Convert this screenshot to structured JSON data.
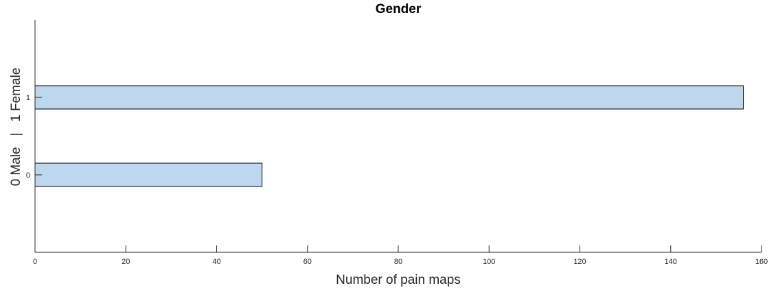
{
  "chart_data": {
    "type": "bar",
    "orientation": "horizontal",
    "title": "Gender",
    "xlabel": "Number of pain maps",
    "ylabel": "0 Male   |   1 Female",
    "categories": [
      "0",
      "1"
    ],
    "values": [
      50,
      156
    ],
    "xlim": [
      0,
      160
    ],
    "xticks": [
      0,
      20,
      40,
      60,
      80,
      100,
      120,
      140,
      160
    ],
    "ylim": [
      -1,
      2
    ],
    "grid": false,
    "bar_color": "#bdd7ee",
    "edge_color": "#000000"
  }
}
